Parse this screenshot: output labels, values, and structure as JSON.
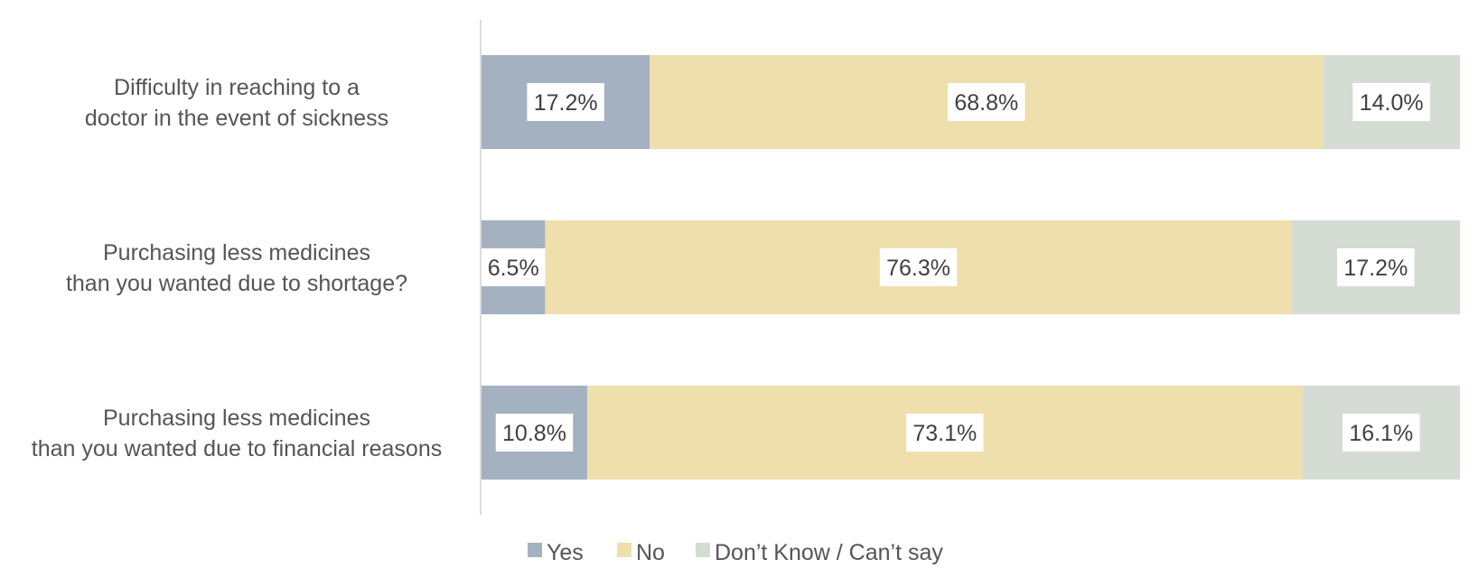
{
  "chart_data": {
    "type": "bar",
    "orientation": "horizontal",
    "stacked": "percent",
    "categories": [
      [
        "Difficulty in reaching to a",
        "doctor in the event of sickness"
      ],
      [
        "Purchasing less medicines",
        "than you wanted due to shortage?"
      ],
      [
        "Purchasing less medicines",
        "than you wanted due to financial reasons"
      ]
    ],
    "series": [
      {
        "name": "Yes",
        "color": "#a3b1c1",
        "values": [
          17.2,
          6.5,
          10.8
        ],
        "labels": [
          "17.2%",
          "6.5%",
          "10.8%"
        ]
      },
      {
        "name": "No",
        "color": "#eedfad",
        "values": [
          68.8,
          76.3,
          73.1
        ],
        "labels": [
          "68.8%",
          "76.3%",
          "73.1%"
        ]
      },
      {
        "name": "Don’t Know / Can’t say",
        "color": "#d4dcd4",
        "values": [
          14.0,
          17.2,
          16.1
        ],
        "labels": [
          "14.0%",
          "17.2%",
          "16.1%"
        ]
      }
    ],
    "xlim": [
      0,
      100
    ],
    "grid": false,
    "legend_position": "bottom"
  }
}
